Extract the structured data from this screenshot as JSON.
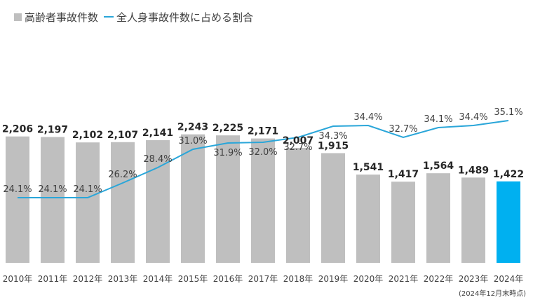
{
  "legend": {
    "bar_label": "高齢者事故件数",
    "line_label": "全人身事故件数に占める割合"
  },
  "note": "(2024年12月末時点)",
  "colors": {
    "bar": "#bfbfbf",
    "bar_highlight": "#00b0f0",
    "line": "#2aa6d9",
    "text": "#404040"
  },
  "chart_data": {
    "type": "bar",
    "categories": [
      "2010年",
      "2011年",
      "2012年",
      "2013年",
      "2014年",
      "2015年",
      "2016年",
      "2017年",
      "2018年",
      "2019年",
      "2020年",
      "2021年",
      "2022年",
      "2023年",
      "2024年"
    ],
    "series": [
      {
        "name": "高齢者事故件数",
        "type": "bar",
        "values": [
          2206,
          2197,
          2102,
          2107,
          2141,
          2243,
          2225,
          2171,
          2007,
          1915,
          1541,
          1417,
          1564,
          1489,
          1422
        ],
        "labels": [
          "2,206",
          "2,197",
          "2,102",
          "2,107",
          "2,141",
          "2,243",
          "2,225",
          "2,171",
          "2,007",
          "1,915",
          "1,541",
          "1,417",
          "1,564",
          "1,489",
          "1,422"
        ],
        "highlight_index": 14
      },
      {
        "name": "全人身事故件数に占める割合",
        "type": "line",
        "values": [
          24.1,
          24.1,
          24.1,
          26.2,
          28.4,
          31.0,
          31.9,
          32.0,
          32.7,
          34.3,
          34.4,
          32.7,
          34.1,
          34.4,
          35.1
        ],
        "labels": [
          "24.1%",
          "24.1%",
          "24.1%",
          "26.2%",
          "28.4%",
          "31.0%",
          "31.9%",
          "32.0%",
          "32.7%",
          "34.3%",
          "34.4%",
          "32.7%",
          "34.1%",
          "34.4%",
          "35.1%"
        ],
        "unit": "%"
      }
    ],
    "bar_axis_range": [
      0,
      2300
    ],
    "line_axis_range": [
      10,
      38
    ],
    "grid": false,
    "legend_position": "top-left"
  }
}
